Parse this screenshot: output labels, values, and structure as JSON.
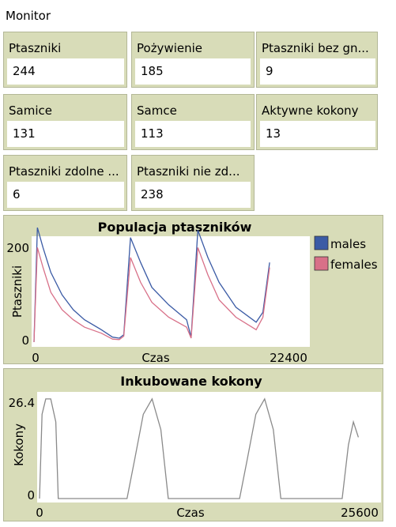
{
  "title": "Monitor",
  "monitors": [
    {
      "label": "Ptaszniki",
      "value": "244"
    },
    {
      "label": "Pożywienie",
      "value": "185"
    },
    {
      "label": "Ptaszniki bez gn...",
      "value": "9"
    },
    {
      "label": "Samice",
      "value": "131"
    },
    {
      "label": "Samce",
      "value": "113"
    },
    {
      "label": "Aktywne kokony",
      "value": "13"
    },
    {
      "label": "Ptaszniki zdolne ...",
      "value": "6"
    },
    {
      "label": "Ptaszniki nie zd...",
      "value": "238"
    }
  ],
  "chart_data": [
    {
      "type": "line",
      "title": "Populacja ptaszników",
      "xlabel": "Czas",
      "ylabel": "Ptaszniki",
      "xlim": [
        0,
        22400
      ],
      "ylim": [
        0,
        200
      ],
      "x_tick_labels": [
        "0",
        "22400"
      ],
      "y_tick_labels": [
        "0",
        "200"
      ],
      "legend_position": "top-right",
      "series": [
        {
          "name": "males",
          "color": "#3b5ba5",
          "x": [
            0,
            300,
            800,
            1500,
            2500,
            3500,
            4500,
            6000,
            7000,
            7600,
            8000,
            8600,
            9500,
            10500,
            12000,
            13600,
            14000,
            14600,
            15500,
            16500,
            18000,
            19800,
            20400,
            21000
          ],
          "y": [
            0,
            230,
            190,
            140,
            95,
            65,
            45,
            25,
            10,
            8,
            15,
            210,
            160,
            110,
            75,
            45,
            10,
            225,
            170,
            120,
            70,
            40,
            60,
            160
          ]
        },
        {
          "name": "females",
          "color": "#d87088",
          "x": [
            0,
            300,
            800,
            1500,
            2500,
            3500,
            4500,
            6000,
            7000,
            7600,
            8000,
            8600,
            9500,
            10500,
            12000,
            13600,
            14000,
            14600,
            15500,
            16500,
            18000,
            19800,
            20400,
            21000
          ],
          "y": [
            0,
            190,
            150,
            100,
            65,
            45,
            30,
            18,
            6,
            5,
            12,
            170,
            120,
            80,
            50,
            30,
            8,
            190,
            135,
            85,
            50,
            25,
            50,
            150
          ]
        }
      ]
    },
    {
      "type": "line",
      "title": "Inkubowane kokony",
      "xlabel": "Czas",
      "ylabel": "Kokony",
      "xlim": [
        0,
        25600
      ],
      "ylim": [
        0,
        26.4
      ],
      "x_tick_labels": [
        "0",
        "25600"
      ],
      "y_tick_labels": [
        "0",
        "26.4"
      ],
      "series": [
        {
          "name": "kokony",
          "color": "#8a8a8a",
          "x": [
            0,
            200,
            500,
            900,
            1300,
            1500,
            7000,
            7600,
            8300,
            9000,
            9700,
            10300,
            16000,
            16600,
            17300,
            18000,
            18700,
            19300,
            24200,
            24700,
            25100,
            25500
          ],
          "y": [
            0,
            22,
            26,
            26,
            20,
            0,
            0,
            10,
            22,
            26,
            18,
            0,
            0,
            10,
            22,
            26,
            18,
            0,
            0,
            14,
            20,
            16
          ]
        }
      ]
    }
  ]
}
